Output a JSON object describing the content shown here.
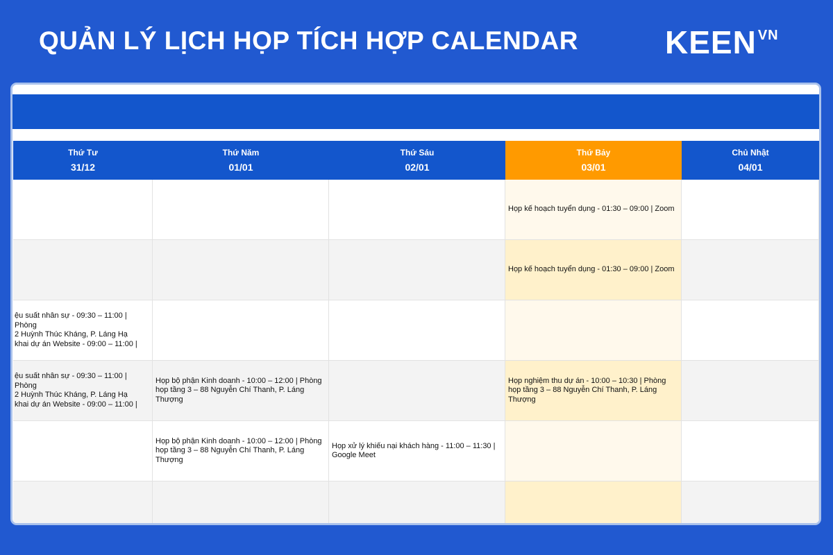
{
  "header": {
    "title": "QUẢN LÝ LỊCH HỌP TÍCH HỢP CALENDAR",
    "logo": "KEEN",
    "logo_sup": "VN"
  },
  "colors": {
    "background": "#2159d0",
    "header_blue": "#1356cc",
    "today": "#ff9a00",
    "today_cell": "#fff9ec"
  },
  "days": [
    {
      "name": "Thứ Tư",
      "date": "31/12",
      "today": false
    },
    {
      "name": "Thứ Năm",
      "date": "01/01",
      "today": false
    },
    {
      "name": "Thứ Sáu",
      "date": "02/01",
      "today": false
    },
    {
      "name": "Thứ Bảy",
      "date": "03/01",
      "today": true
    },
    {
      "name": "Chủ Nhật",
      "date": "04/01",
      "today": false
    }
  ],
  "rows": [
    [
      "",
      "",
      "",
      "Họp kế hoạch tuyển dụng - 01:30 – 09:00 | Zoom",
      ""
    ],
    [
      "",
      "",
      "",
      "Họp kế hoạch tuyển dụng - 01:30 – 09:00 | Zoom",
      ""
    ],
    [
      "ệu suất nhân sự - 09:30 – 11:00 | Phòng\n2 Huỳnh Thúc Kháng, P. Láng Hạ\nkhai dự án Website - 09:00 – 11:00 |",
      "",
      "",
      "",
      ""
    ],
    [
      "ệu suất nhân sự - 09:30 – 11:00 | Phòng\n2 Huỳnh Thúc Kháng, P. Láng Hạ\nkhai dự án Website - 09:00 – 11:00 |",
      "Họp bộ phận Kinh doanh - 10:00 – 12:00 | Phòng họp tầng 3 – 88 Nguyễn Chí Thanh, P. Láng Thượng",
      "",
      "Họp nghiệm thu dự án - 10:00 – 10:30 | Phòng họp tầng 3 – 88 Nguyễn Chí Thanh, P. Láng Thượng",
      ""
    ],
    [
      "",
      "Họp bộ phận Kinh doanh - 10:00 – 12:00 | Phòng họp tầng 3 – 88 Nguyễn Chí Thanh, P. Láng Thượng",
      "Họp xử lý khiếu nại khách hàng - 11:00 – 11:30 | Google Meet",
      "",
      ""
    ],
    [
      "",
      "",
      "",
      "",
      ""
    ]
  ]
}
